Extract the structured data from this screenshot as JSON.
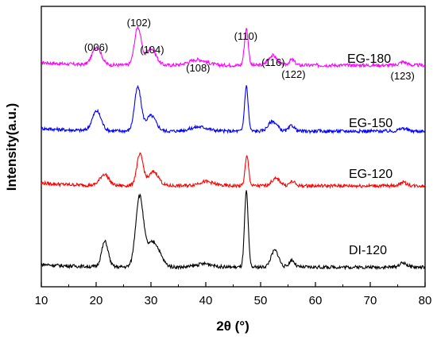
{
  "chart_data": {
    "type": "line",
    "xlabel": "2θ (°)",
    "ylabel": "Intensity(a.u.)",
    "xlim": [
      10,
      80
    ],
    "xticks": [
      10,
      20,
      30,
      40,
      50,
      60,
      70,
      80
    ],
    "yticks_shown": false,
    "grid": false,
    "legend": "none",
    "series": [
      {
        "name": "EG-180",
        "color": "#ff00ff",
        "baseline": 0.79,
        "peaks": [
          [
            20.1,
            0.065,
            0.8
          ],
          [
            27.6,
            0.135,
            0.6
          ],
          [
            30.0,
            0.06,
            0.9
          ],
          [
            38.5,
            0.02,
            1.6
          ],
          [
            47.4,
            0.13,
            0.35
          ],
          [
            52.2,
            0.035,
            0.8
          ],
          [
            55.7,
            0.02,
            0.5
          ],
          [
            76.0,
            0.012,
            0.7
          ]
        ]
      },
      {
        "name": "EG-150",
        "color": "#0000ff",
        "baseline": 0.555,
        "peaks": [
          [
            20.1,
            0.07,
            0.8
          ],
          [
            27.6,
            0.155,
            0.6
          ],
          [
            30.0,
            0.055,
            0.9
          ],
          [
            38.8,
            0.015,
            1.6
          ],
          [
            47.4,
            0.16,
            0.33
          ],
          [
            52.2,
            0.035,
            0.8
          ],
          [
            55.7,
            0.02,
            0.5
          ],
          [
            76.0,
            0.01,
            0.7
          ]
        ]
      },
      {
        "name": "EG-120",
        "color": "#ff0000",
        "baseline": 0.36,
        "peaks": [
          [
            21.5,
            0.04,
            0.8
          ],
          [
            28.0,
            0.11,
            0.6
          ],
          [
            30.5,
            0.05,
            0.9
          ],
          [
            40.0,
            0.015,
            1.4
          ],
          [
            47.5,
            0.105,
            0.33
          ],
          [
            52.8,
            0.025,
            0.8
          ],
          [
            55.8,
            0.015,
            0.5
          ],
          [
            76.0,
            0.012,
            0.7
          ]
        ]
      },
      {
        "name": "DI-120",
        "color": "#000000",
        "baseline": 0.07,
        "peaks": [
          [
            21.6,
            0.09,
            0.6
          ],
          [
            27.9,
            0.245,
            0.7
          ],
          [
            30.4,
            0.09,
            1.2
          ],
          [
            39.8,
            0.012,
            1.5
          ],
          [
            47.4,
            0.27,
            0.33
          ],
          [
            52.6,
            0.06,
            0.7
          ],
          [
            55.7,
            0.025,
            0.5
          ],
          [
            76.0,
            0.015,
            0.7
          ]
        ]
      }
    ],
    "annotations": [
      {
        "text": "(006)",
        "x": 20.0
      },
      {
        "text": "(102)",
        "x": 27.8
      },
      {
        "text": "(104)",
        "x": 30.2
      },
      {
        "text": "(108)",
        "x": 38.6
      },
      {
        "text": "(110)",
        "x": 47.3
      },
      {
        "text": "(116)",
        "x": 52.3
      },
      {
        "text": "(122)",
        "x": 56.0
      },
      {
        "text": "(123)",
        "x": 75.9
      }
    ]
  }
}
